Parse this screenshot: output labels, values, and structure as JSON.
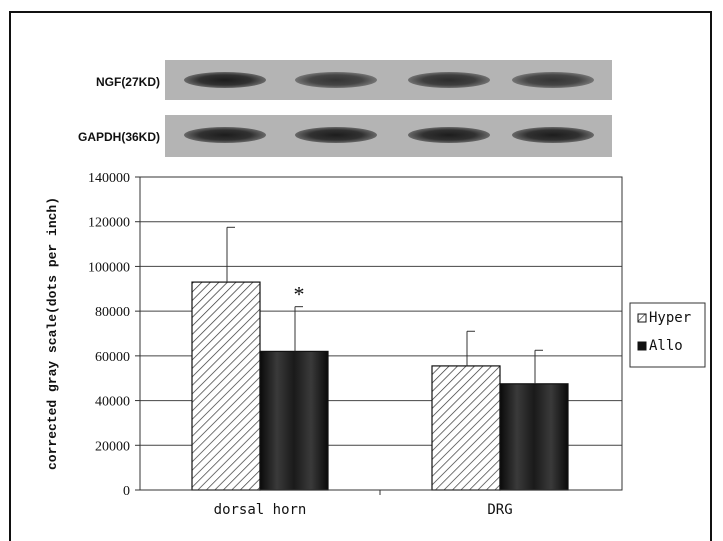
{
  "blots": [
    {
      "label": "NGF(27KD)",
      "bands": [
        0.95,
        0.8,
        0.85,
        0.8
      ]
    },
    {
      "label": "GAPDH(36KD)",
      "bands": [
        0.95,
        0.95,
        0.95,
        0.95
      ]
    }
  ],
  "chart_data": {
    "type": "bar",
    "categories": [
      "dorsal horn",
      "DRG"
    ],
    "series": [
      {
        "name": "Hyper",
        "values": [
          93000,
          55500
        ],
        "errors": [
          24500,
          15500
        ],
        "pattern": "hatched"
      },
      {
        "name": "Allo",
        "values": [
          62000,
          47500
        ],
        "errors": [
          20000,
          15000
        ],
        "pattern": "dark"
      }
    ],
    "ylabel": "corrected gray scale(dots per inch)",
    "ylim": [
      0,
      140000
    ],
    "yticks": [
      "0",
      "20000",
      "40000",
      "60000",
      "80000",
      "100000",
      "120000",
      "140000"
    ],
    "grid": true,
    "legend_position": "right",
    "annotations": [
      {
        "text": "*",
        "category": "dorsal horn",
        "series": "Allo"
      }
    ]
  }
}
